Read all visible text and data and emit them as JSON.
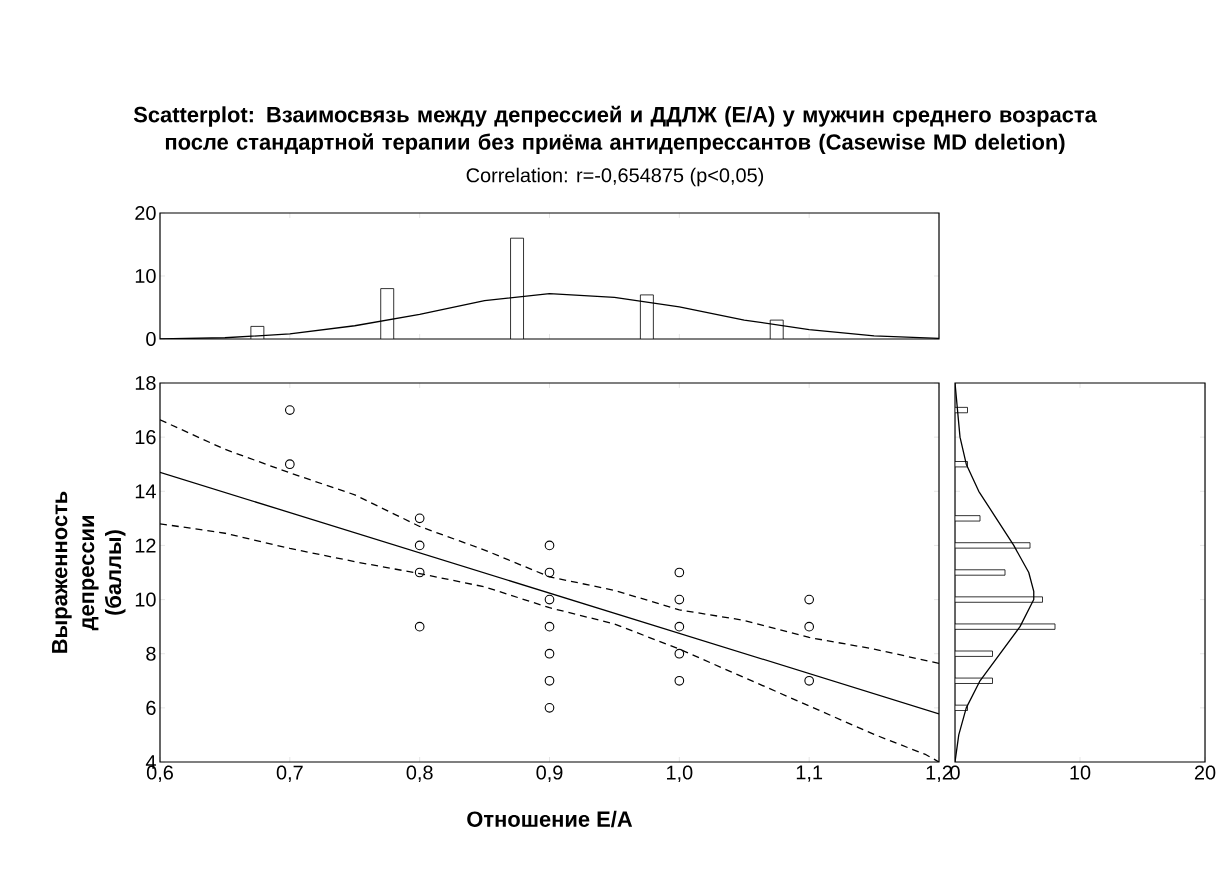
{
  "chart_data": [
    {
      "type": "bar",
      "title": "Scatterplot: Взаимосвязь между депрессией и ДДЛЖ (E/A) у мужчин среднего возраста после стандартной терапии без приёма антидепрессантов (Casewise MD deletion)",
      "subtitle": "Correlation: r=-0,654875  (p<0,05)",
      "xlim": [
        0.6,
        1.2
      ],
      "ylim": [
        0,
        20
      ],
      "xticks": [
        0.6,
        0.7,
        0.8,
        0.9,
        1.0,
        1.1,
        1.2
      ],
      "yticks": [
        0,
        10,
        20
      ],
      "tick_labels": "y",
      "series": [
        {
          "color": "#ffffff",
          "x": [
            0.675,
            0.775,
            0.875,
            0.975,
            1.075
          ],
          "values": [
            2,
            8,
            16,
            7,
            3
          ]
        },
        {
          "type": "line",
          "color": "#000000",
          "x": [
            0.6,
            0.65,
            0.7,
            0.75,
            0.8,
            0.85,
            0.9,
            0.95,
            1.0,
            1.05,
            1.1,
            1.15,
            1.2
          ],
          "values": [
            0,
            0.2,
            0.8,
            2.1,
            3.9,
            6.1,
            7.2,
            6.6,
            5.1,
            3.0,
            1.5,
            0.5,
            0.1
          ]
        }
      ]
    },
    {
      "type": "scatter",
      "xlabel": "Отношение E/A",
      "ylabel": "Выраженность депрессии (баллы)",
      "xlim": [
        0.6,
        1.2
      ],
      "ylim": [
        4,
        18
      ],
      "marker": "circle",
      "xticks": [
        {
          "value": 0.6,
          "label": "0,6"
        },
        {
          "value": 0.7,
          "label": "0,7"
        },
        {
          "value": 0.8,
          "label": "0,8"
        },
        {
          "value": 0.9,
          "label": "0,9"
        },
        {
          "value": 1.0,
          "label": "1,0"
        },
        {
          "value": 1.1,
          "label": "1,1"
        },
        {
          "value": 1.2,
          "label": "1,2"
        }
      ],
      "yticks": [
        4,
        6,
        8,
        10,
        12,
        14,
        16,
        18
      ],
      "series": [
        {
          "color": "#000000",
          "x": [
            0.7,
            0.7,
            0.8,
            0.8,
            0.8,
            0.8,
            0.9,
            0.9,
            0.9,
            0.9,
            0.9,
            0.9,
            0.9,
            1.0,
            1.0,
            1.0,
            1.0,
            1.0,
            1.1,
            1.1,
            1.1
          ],
          "values": [
            17,
            15,
            13,
            12,
            11,
            9,
            12,
            11,
            10,
            9,
            8,
            7,
            6,
            11,
            10,
            9,
            8,
            7,
            10,
            9,
            7
          ]
        },
        {
          "type": "line",
          "color": "#000000",
          "marker": "none",
          "line_style": "solid",
          "x": [
            0.6,
            1.2
          ],
          "values": [
            14.7,
            5.78
          ]
        },
        {
          "type": "line",
          "color": "#000000",
          "marker": "none",
          "line_style": "dashed",
          "x": [
            0.6,
            0.65,
            0.7,
            0.75,
            0.8,
            0.85,
            0.9,
            0.95,
            1.0,
            1.05,
            1.1,
            1.15,
            1.2
          ],
          "values": [
            16.64,
            15.55,
            14.68,
            13.87,
            12.7,
            11.83,
            10.84,
            10.34,
            9.62,
            9.23,
            8.6,
            8.17,
            7.64
          ]
        },
        {
          "type": "line",
          "color": "#000000",
          "marker": "none",
          "line_style": "dashed",
          "x": [
            0.6,
            0.65,
            0.7,
            0.75,
            0.8,
            0.85,
            0.9,
            0.95,
            1.0,
            1.05,
            1.1,
            1.15,
            1.19,
            1.2
          ],
          "values": [
            12.8,
            12.45,
            11.89,
            11.4,
            10.96,
            10.47,
            9.7,
            9.1,
            8.17,
            7.12,
            6.07,
            5.02,
            4.27,
            4.0
          ]
        }
      ]
    },
    {
      "type": "bar",
      "orientation": "horizontal",
      "xlim": [
        0,
        20
      ],
      "ylim": [
        4,
        18
      ],
      "xticks": [
        0,
        10,
        20
      ],
      "yticks": [
        4,
        6,
        8,
        10,
        12,
        14,
        16,
        18
      ],
      "tick_labels": "x",
      "series": [
        {
          "color": "#ffffff",
          "x": [
            17,
            15,
            13,
            12,
            11,
            10,
            9,
            8,
            7,
            6
          ],
          "values": [
            1,
            1,
            2,
            6,
            4,
            7,
            8,
            3,
            3,
            1
          ]
        },
        {
          "type": "line",
          "color": "#000000",
          "x": [
            18,
            16,
            15,
            14,
            13,
            12,
            11,
            10.3,
            10,
            9,
            8,
            7,
            6,
            5,
            4
          ],
          "values": [
            0,
            0.4,
            0.9,
            1.9,
            3.3,
            4.7,
            5.9,
            6.3,
            6.3,
            5.2,
            3.6,
            2.0,
            0.9,
            0.3,
            0
          ]
        }
      ]
    }
  ]
}
